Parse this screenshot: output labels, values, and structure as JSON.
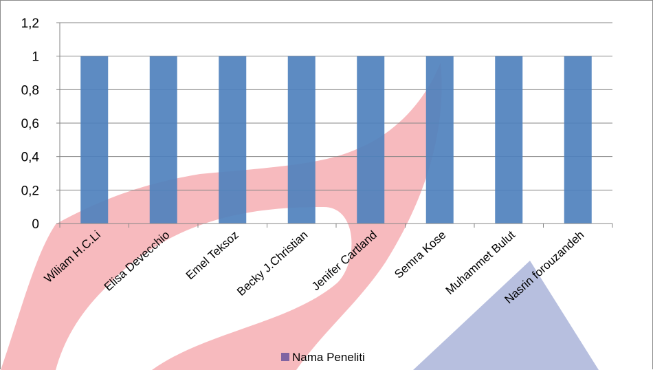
{
  "chart_data": {
    "type": "bar",
    "title": "",
    "xlabel": "",
    "ylabel": "",
    "categories": [
      "Wiliam H.C.Li",
      "Elisa Devecchio",
      "Emel Teksoz",
      "Becky J.Christian",
      "Jenifer Cartland",
      "Semra Kose",
      "Muhammet Bulut",
      "Nasrin forouzandeh"
    ],
    "series": [
      {
        "name": "Nama Peneliti",
        "values": [
          1,
          1,
          1,
          1,
          1,
          1,
          1,
          1
        ],
        "color": "#4f81bd",
        "legend_color": "#8064a2"
      }
    ],
    "ylim": [
      0,
      1.2
    ],
    "yticks": [
      "0",
      "0,2",
      "0,4",
      "0,6",
      "0,8",
      "1",
      "1,2"
    ],
    "grid": true,
    "legend": "bottom"
  },
  "watermark": {
    "colors": [
      "#f4a3a8",
      "#9fa9d4"
    ]
  }
}
